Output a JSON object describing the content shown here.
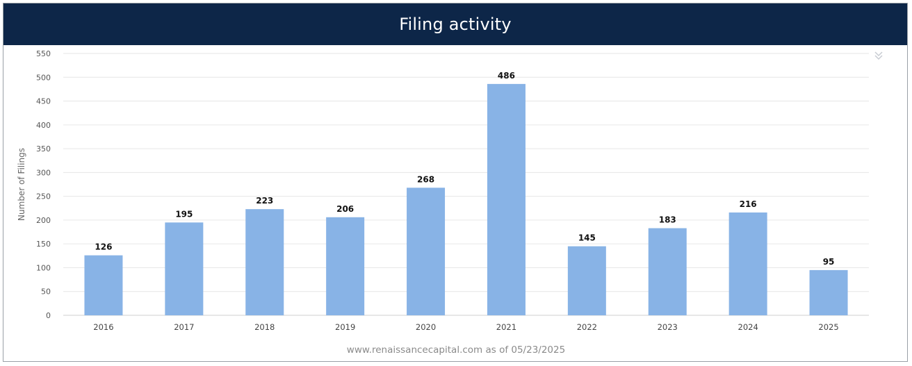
{
  "header": {
    "title": "Filing activity",
    "background": "#0d2648"
  },
  "menu": {
    "icon": "double-chevron-down-icon"
  },
  "credit": "www.renaissancecapital.com as of 05/23/2025",
  "chart_data": {
    "type": "bar",
    "title": "Filing activity",
    "xlabel": "",
    "ylabel": "Number of Filings",
    "categories": [
      "2016",
      "2017",
      "2018",
      "2019",
      "2020",
      "2021",
      "2022",
      "2023",
      "2024",
      "2025"
    ],
    "values": [
      126,
      195,
      223,
      206,
      268,
      486,
      145,
      183,
      216,
      95
    ],
    "data_labels": [
      "126",
      "195",
      "223",
      "206",
      "268",
      "486",
      "145",
      "183",
      "216",
      "95"
    ],
    "ylim": [
      0,
      550
    ],
    "yticks": [
      0,
      50,
      100,
      150,
      200,
      250,
      300,
      350,
      400,
      450,
      500,
      550
    ],
    "ytick_labels": [
      "0",
      "50",
      "100",
      "150",
      "200",
      "250",
      "300",
      "350",
      "400",
      "450",
      "500",
      "550"
    ],
    "grid": true,
    "legend": "none",
    "bar_color": "#88b3e6",
    "grid_color": "#e6e6e6"
  }
}
